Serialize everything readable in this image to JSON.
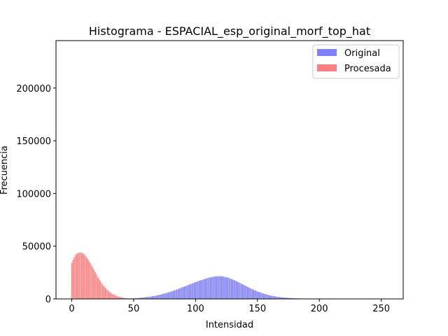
{
  "chart_data": {
    "type": "bar",
    "title": "Histograma - ESPACIAL_esp_original_morf_top_hat",
    "xlabel": "Intensidad",
    "ylabel": "Frecuencia",
    "xlim": [
      -12.75,
      267.75
    ],
    "ylim": [
      0,
      245000
    ],
    "x_ticks": [
      0,
      50,
      100,
      150,
      200,
      250
    ],
    "y_ticks": [
      0,
      50000,
      100000,
      150000,
      200000
    ],
    "legend_position": "top-right",
    "grid": false,
    "series": [
      {
        "name": "Original",
        "color": "#7f7fff",
        "bins": [
          [
            45,
            250
          ],
          [
            46,
            300
          ],
          [
            47,
            350
          ],
          [
            48,
            400
          ],
          [
            49,
            500
          ],
          [
            50,
            550
          ],
          [
            51,
            600
          ],
          [
            52,
            700
          ],
          [
            53,
            800
          ],
          [
            54,
            900
          ],
          [
            55,
            1000
          ],
          [
            56,
            1100
          ],
          [
            57,
            1200
          ],
          [
            58,
            1350
          ],
          [
            59,
            1500
          ],
          [
            60,
            1650
          ],
          [
            61,
            1800
          ],
          [
            62,
            1950
          ],
          [
            63,
            2100
          ],
          [
            64,
            2300
          ],
          [
            65,
            2500
          ],
          [
            66,
            2700
          ],
          [
            67,
            2900
          ],
          [
            68,
            3150
          ],
          [
            69,
            3400
          ],
          [
            70,
            3650
          ],
          [
            71,
            3900
          ],
          [
            72,
            4200
          ],
          [
            73,
            4500
          ],
          [
            74,
            4800
          ],
          [
            75,
            5100
          ],
          [
            76,
            5450
          ],
          [
            77,
            5800
          ],
          [
            78,
            6150
          ],
          [
            79,
            6500
          ],
          [
            80,
            6900
          ],
          [
            81,
            7300
          ],
          [
            82,
            7700
          ],
          [
            83,
            8100
          ],
          [
            84,
            8500
          ],
          [
            85,
            8950
          ],
          [
            86,
            9400
          ],
          [
            87,
            9850
          ],
          [
            88,
            10300
          ],
          [
            89,
            10750
          ],
          [
            90,
            11250
          ],
          [
            91,
            11700
          ],
          [
            92,
            12200
          ],
          [
            93,
            12650
          ],
          [
            94,
            13150
          ],
          [
            95,
            13600
          ],
          [
            96,
            14100
          ],
          [
            97,
            14550
          ],
          [
            98,
            15000
          ],
          [
            99,
            15450
          ],
          [
            100,
            15900
          ],
          [
            101,
            16350
          ],
          [
            102,
            16800
          ],
          [
            103,
            17200
          ],
          [
            104,
            17600
          ],
          [
            105,
            18000
          ],
          [
            106,
            18400
          ],
          [
            107,
            18800
          ],
          [
            108,
            19150
          ],
          [
            109,
            19500
          ],
          [
            110,
            19850
          ],
          [
            111,
            20150
          ],
          [
            112,
            20450
          ],
          [
            113,
            20700
          ],
          [
            114,
            20950
          ],
          [
            115,
            21150
          ],
          [
            116,
            21300
          ],
          [
            117,
            21400
          ],
          [
            118,
            21500
          ],
          [
            119,
            21550
          ],
          [
            120,
            21500
          ],
          [
            121,
            21400
          ],
          [
            122,
            21250
          ],
          [
            123,
            21050
          ],
          [
            124,
            20800
          ],
          [
            125,
            20500
          ],
          [
            126,
            20150
          ],
          [
            127,
            19750
          ],
          [
            128,
            19350
          ],
          [
            129,
            18900
          ],
          [
            130,
            18400
          ],
          [
            131,
            17900
          ],
          [
            132,
            17350
          ],
          [
            133,
            16800
          ],
          [
            134,
            16250
          ],
          [
            135,
            15650
          ],
          [
            136,
            15050
          ],
          [
            137,
            14450
          ],
          [
            138,
            13850
          ],
          [
            139,
            13250
          ],
          [
            140,
            12650
          ],
          [
            141,
            12050
          ],
          [
            142,
            11450
          ],
          [
            143,
            10850
          ],
          [
            144,
            10250
          ],
          [
            145,
            9700
          ],
          [
            146,
            9150
          ],
          [
            147,
            8600
          ],
          [
            148,
            8100
          ],
          [
            149,
            7600
          ],
          [
            150,
            7100
          ],
          [
            151,
            6650
          ],
          [
            152,
            6200
          ],
          [
            153,
            5800
          ],
          [
            154,
            5400
          ],
          [
            155,
            5000
          ],
          [
            156,
            4650
          ],
          [
            157,
            4300
          ],
          [
            158,
            4000
          ],
          [
            159,
            3700
          ],
          [
            160,
            3400
          ],
          [
            161,
            3150
          ],
          [
            162,
            2900
          ],
          [
            163,
            2650
          ],
          [
            164,
            2450
          ],
          [
            165,
            2250
          ],
          [
            166,
            2050
          ],
          [
            167,
            1900
          ],
          [
            168,
            1750
          ],
          [
            169,
            1600
          ],
          [
            170,
            1450
          ],
          [
            171,
            1350
          ],
          [
            172,
            1250
          ],
          [
            173,
            1150
          ],
          [
            174,
            1050
          ],
          [
            175,
            950
          ],
          [
            176,
            880
          ],
          [
            177,
            810
          ],
          [
            178,
            740
          ],
          [
            179,
            680
          ],
          [
            180,
            620
          ],
          [
            181,
            570
          ],
          [
            182,
            520
          ],
          [
            183,
            480
          ],
          [
            184,
            440
          ],
          [
            185,
            400
          ],
          [
            186,
            370
          ],
          [
            187,
            340
          ],
          [
            188,
            310
          ],
          [
            189,
            280
          ],
          [
            190,
            260
          ],
          [
            191,
            240
          ],
          [
            192,
            220
          ],
          [
            193,
            200
          ],
          [
            194,
            180
          ],
          [
            195,
            160
          ],
          [
            196,
            150
          ],
          [
            197,
            140
          ],
          [
            198,
            130
          ],
          [
            199,
            120
          ],
          [
            200,
            110
          ],
          [
            201,
            100
          ],
          [
            202,
            90
          ],
          [
            203,
            85
          ],
          [
            204,
            80
          ],
          [
            205,
            75
          ],
          [
            206,
            70
          ],
          [
            207,
            65
          ],
          [
            208,
            60
          ],
          [
            209,
            55
          ],
          [
            210,
            50
          ],
          [
            211,
            45
          ],
          [
            212,
            40
          ],
          [
            213,
            38
          ],
          [
            214,
            36
          ],
          [
            215,
            34
          ],
          [
            216,
            32
          ],
          [
            217,
            30
          ],
          [
            218,
            28
          ],
          [
            219,
            26
          ],
          [
            220,
            24
          ]
        ]
      },
      {
        "name": "Procesada",
        "color": "#ff7f7f",
        "bins": [
          [
            0,
            34000
          ],
          [
            1,
            37000
          ],
          [
            2,
            39500
          ],
          [
            3,
            41500
          ],
          [
            4,
            42800
          ],
          [
            5,
            43500
          ],
          [
            6,
            43800
          ],
          [
            7,
            43900
          ],
          [
            8,
            43700
          ],
          [
            9,
            43200
          ],
          [
            10,
            42300
          ],
          [
            11,
            41100
          ],
          [
            12,
            39600
          ],
          [
            13,
            37900
          ],
          [
            14,
            36000
          ],
          [
            15,
            34000
          ],
          [
            16,
            31900
          ],
          [
            17,
            29700
          ],
          [
            18,
            27500
          ],
          [
            19,
            25300
          ],
          [
            20,
            23100
          ],
          [
            21,
            21000
          ],
          [
            22,
            19000
          ],
          [
            23,
            17100
          ],
          [
            24,
            15300
          ],
          [
            25,
            13600
          ],
          [
            26,
            12100
          ],
          [
            27,
            10700
          ],
          [
            28,
            9400
          ],
          [
            29,
            8200
          ],
          [
            30,
            7150
          ],
          [
            31,
            6200
          ],
          [
            32,
            5350
          ],
          [
            33,
            4600
          ],
          [
            34,
            3950
          ],
          [
            35,
            3400
          ],
          [
            36,
            2900
          ],
          [
            37,
            2450
          ],
          [
            38,
            2100
          ],
          [
            39,
            1800
          ],
          [
            40,
            1500
          ],
          [
            41,
            1250
          ],
          [
            42,
            1050
          ],
          [
            43,
            900
          ],
          [
            44,
            750
          ],
          [
            45,
            620
          ],
          [
            46,
            520
          ],
          [
            47,
            430
          ],
          [
            48,
            360
          ],
          [
            49,
            300
          ],
          [
            50,
            250
          ],
          [
            51,
            210
          ],
          [
            52,
            170
          ],
          [
            53,
            140
          ],
          [
            54,
            120
          ],
          [
            55,
            100
          ],
          [
            56,
            80
          ],
          [
            57,
            65
          ],
          [
            58,
            55
          ],
          [
            59,
            45
          ],
          [
            60,
            35
          ]
        ]
      }
    ]
  }
}
